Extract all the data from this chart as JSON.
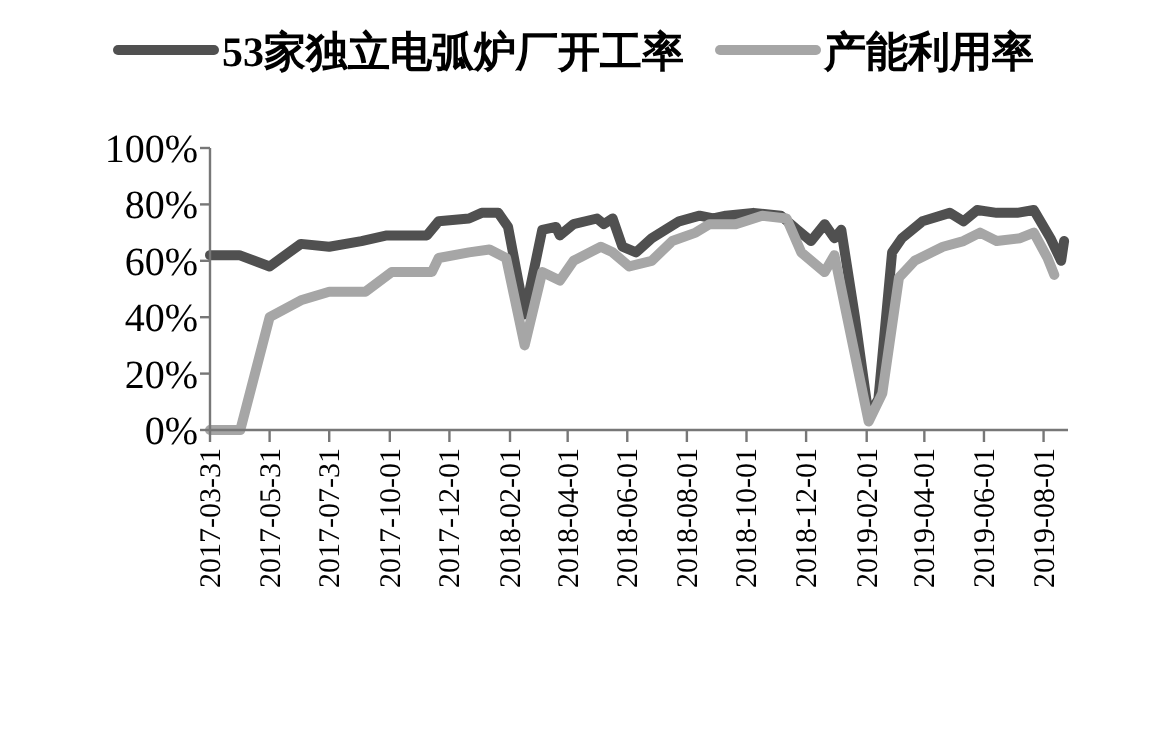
{
  "chart_data": {
    "type": "line",
    "series": [
      {
        "name": "53家独立电弧炉厂开工率",
        "color": "#505050",
        "x": [
          "2017-03-31",
          "2017-04-30",
          "2017-05-31",
          "2017-07-02",
          "2017-07-31",
          "2017-09-02",
          "2017-09-28",
          "2017-11-08",
          "2017-11-20",
          "2017-12-21",
          "2018-01-03",
          "2018-01-20",
          "2018-01-30",
          "2018-02-16",
          "2018-03-06",
          "2018-03-20",
          "2018-03-24",
          "2018-04-07",
          "2018-05-01",
          "2018-05-08",
          "2018-05-17",
          "2018-05-27",
          "2018-06-10",
          "2018-06-26",
          "2018-07-24",
          "2018-08-14",
          "2018-08-28",
          "2018-09-10",
          "2018-10-08",
          "2018-11-05",
          "2018-11-22",
          "2018-12-06",
          "2018-12-20",
          "2018-12-30",
          "2019-01-06",
          "2019-01-20",
          "2019-02-03",
          "2019-02-13",
          "2019-02-27",
          "2019-03-09",
          "2019-03-30",
          "2019-04-27",
          "2019-05-11",
          "2019-05-25",
          "2019-06-14",
          "2019-07-05",
          "2019-07-22",
          "2019-08-08",
          "2019-08-19",
          "2019-08-22"
        ],
        "values": [
          62,
          62,
          58,
          66,
          65,
          67,
          69,
          69,
          74,
          75,
          77,
          77,
          72,
          41,
          71,
          72,
          69,
          73,
          75,
          73,
          75,
          65,
          63,
          68,
          74,
          76,
          75,
          76,
          77,
          76,
          71,
          67,
          73,
          68,
          71,
          40,
          5,
          11,
          63,
          68,
          74,
          77,
          74,
          78,
          77,
          77,
          78,
          68,
          60,
          67
        ]
      },
      {
        "name": "产能利用率",
        "color": "#a6a6a6",
        "x": [
          "2017-03-31",
          "2017-05-01",
          "2017-05-31",
          "2017-07-02",
          "2017-07-31",
          "2017-09-06",
          "2017-10-03",
          "2017-11-13",
          "2017-11-20",
          "2017-12-21",
          "2018-01-11",
          "2018-01-28",
          "2018-02-16",
          "2018-03-06",
          "2018-03-24",
          "2018-04-07",
          "2018-05-05",
          "2018-05-17",
          "2018-06-03",
          "2018-06-26",
          "2018-07-17",
          "2018-08-10",
          "2018-08-24",
          "2018-09-20",
          "2018-10-17",
          "2018-11-11",
          "2018-11-26",
          "2018-12-20",
          "2018-12-30",
          "2019-01-12",
          "2019-02-03",
          "2019-02-17",
          "2019-03-06",
          "2019-03-22",
          "2019-04-20",
          "2019-05-11",
          "2019-05-28",
          "2019-06-14",
          "2019-07-08",
          "2019-07-22",
          "2019-08-05",
          "2019-08-12"
        ],
        "values": [
          0,
          0,
          40,
          46,
          49,
          49,
          56,
          56,
          61,
          63,
          64,
          61,
          30,
          56,
          53,
          60,
          65,
          63,
          58,
          60,
          67,
          70,
          73,
          73,
          76,
          75,
          63,
          56,
          62,
          40,
          3,
          13,
          54,
          60,
          65,
          67,
          70,
          67,
          68,
          70,
          61,
          55
        ]
      }
    ],
    "xlim": [
      "2017-03-31",
      "2019-08-26"
    ],
    "xticks": [
      "2017-03-31",
      "2017-05-31",
      "2017-07-31",
      "2017-10-01",
      "2017-12-01",
      "2018-02-01",
      "2018-04-01",
      "2018-06-01",
      "2018-08-01",
      "2018-10-01",
      "2018-12-01",
      "2019-02-01",
      "2019-04-01",
      "2019-06-01",
      "2019-08-01"
    ],
    "ylim": [
      0,
      100
    ],
    "yticks": [
      {
        "value": 0,
        "label": "0%"
      },
      {
        "value": 20,
        "label": "20%"
      },
      {
        "value": 40,
        "label": "40%"
      },
      {
        "value": 60,
        "label": "60%"
      },
      {
        "value": 80,
        "label": "80%"
      },
      {
        "value": 100,
        "label": "100%"
      }
    ],
    "legend": "top",
    "grid": false,
    "line_style": "solid"
  }
}
